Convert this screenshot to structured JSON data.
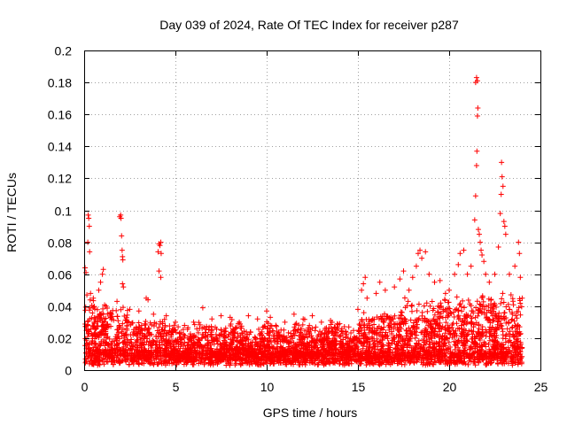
{
  "chart_data": {
    "type": "scatter",
    "title": "Day 039 of 2024, Rate Of TEC Index for receiver p287",
    "xlabel": "GPS time / hours",
    "ylabel": "ROTI / TECUs",
    "xlim": [
      0,
      25
    ],
    "ylim": [
      0,
      0.2
    ],
    "x_ticks": [
      0,
      5,
      10,
      15,
      20,
      25
    ],
    "y_ticks": [
      0,
      0.02,
      0.04,
      0.06,
      0.08,
      0.1,
      0.12,
      0.14,
      0.16,
      0.18,
      0.2
    ],
    "x_tick_labels": [
      "0",
      "5",
      "10",
      "15",
      "20",
      "25"
    ],
    "y_tick_labels": [
      "0",
      "0.02",
      "0.04",
      "0.06",
      "0.08",
      "0.1",
      "0.12",
      "0.14",
      "0.16",
      "0.18",
      "0.2"
    ],
    "grid": true,
    "marker": "+",
    "color": "#ff0000",
    "series": [
      {
        "name": "ROTI",
        "points": [
          [
            0.05,
            0.064
          ],
          [
            0.1,
            0.061
          ],
          [
            0.15,
            0.047
          ],
          [
            0.2,
            0.08
          ],
          [
            0.22,
            0.097
          ],
          [
            0.25,
            0.095
          ],
          [
            0.28,
            0.09
          ],
          [
            0.3,
            0.074
          ],
          [
            0.35,
            0.048
          ],
          [
            0.5,
            0.045
          ],
          [
            0.8,
            0.05
          ],
          [
            0.9,
            0.055
          ],
          [
            1.0,
            0.06
          ],
          [
            1.05,
            0.063
          ],
          [
            1.2,
            0.04
          ],
          [
            1.5,
            0.035
          ],
          [
            1.8,
            0.043
          ],
          [
            1.95,
            0.096
          ],
          [
            2.0,
            0.097
          ],
          [
            2.02,
            0.095
          ],
          [
            2.05,
            0.084
          ],
          [
            2.08,
            0.075
          ],
          [
            2.1,
            0.071
          ],
          [
            2.12,
            0.069
          ],
          [
            2.1,
            0.054
          ],
          [
            2.15,
            0.052
          ],
          [
            2.5,
            0.038
          ],
          [
            3.0,
            0.037
          ],
          [
            3.4,
            0.045
          ],
          [
            3.5,
            0.044
          ],
          [
            3.8,
            0.035
          ],
          [
            4.05,
            0.074
          ],
          [
            4.1,
            0.079
          ],
          [
            4.15,
            0.078
          ],
          [
            4.2,
            0.08
          ],
          [
            4.22,
            0.073
          ],
          [
            4.1,
            0.062
          ],
          [
            4.2,
            0.058
          ],
          [
            4.5,
            0.034
          ],
          [
            5.0,
            0.03
          ],
          [
            5.5,
            0.028
          ],
          [
            6.0,
            0.03
          ],
          [
            6.5,
            0.039
          ],
          [
            7.0,
            0.032
          ],
          [
            7.5,
            0.034
          ],
          [
            8.0,
            0.033
          ],
          [
            8.5,
            0.03
          ],
          [
            9.0,
            0.034
          ],
          [
            9.5,
            0.032
          ],
          [
            10.0,
            0.037
          ],
          [
            10.2,
            0.033
          ],
          [
            10.5,
            0.028
          ],
          [
            11.0,
            0.03
          ],
          [
            11.5,
            0.035
          ],
          [
            12.0,
            0.032
          ],
          [
            12.5,
            0.034
          ],
          [
            13.0,
            0.03
          ],
          [
            13.5,
            0.031
          ],
          [
            14.0,
            0.029
          ],
          [
            14.5,
            0.027
          ],
          [
            15.0,
            0.038
          ],
          [
            15.2,
            0.05
          ],
          [
            15.3,
            0.054
          ],
          [
            15.4,
            0.058
          ],
          [
            15.5,
            0.045
          ],
          [
            16.0,
            0.048
          ],
          [
            16.2,
            0.055
          ],
          [
            16.5,
            0.05
          ],
          [
            17.0,
            0.052
          ],
          [
            17.3,
            0.057
          ],
          [
            17.5,
            0.062
          ],
          [
            17.8,
            0.05
          ],
          [
            18.0,
            0.058
          ],
          [
            18.2,
            0.065
          ],
          [
            18.3,
            0.073
          ],
          [
            18.4,
            0.075
          ],
          [
            18.5,
            0.07
          ],
          [
            18.7,
            0.074
          ],
          [
            18.9,
            0.06
          ],
          [
            19.2,
            0.055
          ],
          [
            19.5,
            0.056
          ],
          [
            19.8,
            0.048
          ],
          [
            20.0,
            0.05
          ],
          [
            20.3,
            0.06
          ],
          [
            20.5,
            0.066
          ],
          [
            20.6,
            0.073
          ],
          [
            20.8,
            0.075
          ],
          [
            21.0,
            0.06
          ],
          [
            21.2,
            0.065
          ],
          [
            21.4,
            0.094
          ],
          [
            21.45,
            0.109
          ],
          [
            21.5,
            0.128
          ],
          [
            21.52,
            0.137
          ],
          [
            21.55,
            0.159
          ],
          [
            21.57,
            0.164
          ],
          [
            21.45,
            0.18
          ],
          [
            21.5,
            0.183
          ],
          [
            21.55,
            0.181
          ],
          [
            21.6,
            0.088
          ],
          [
            21.65,
            0.085
          ],
          [
            21.7,
            0.08
          ],
          [
            21.75,
            0.075
          ],
          [
            21.8,
            0.072
          ],
          [
            21.9,
            0.068
          ],
          [
            22.0,
            0.06
          ],
          [
            22.2,
            0.055
          ],
          [
            22.5,
            0.06
          ],
          [
            22.7,
            0.077
          ],
          [
            22.8,
            0.098
          ],
          [
            22.85,
            0.11
          ],
          [
            22.9,
            0.121
          ],
          [
            22.95,
            0.115
          ],
          [
            22.87,
            0.13
          ],
          [
            23.0,
            0.093
          ],
          [
            23.05,
            0.09
          ],
          [
            23.1,
            0.085
          ],
          [
            23.3,
            0.06
          ],
          [
            23.6,
            0.065
          ],
          [
            23.8,
            0.08
          ],
          [
            23.85,
            0.073
          ],
          [
            23.9,
            0.058
          ],
          [
            24.0,
            0.045
          ]
        ]
      }
    ]
  }
}
